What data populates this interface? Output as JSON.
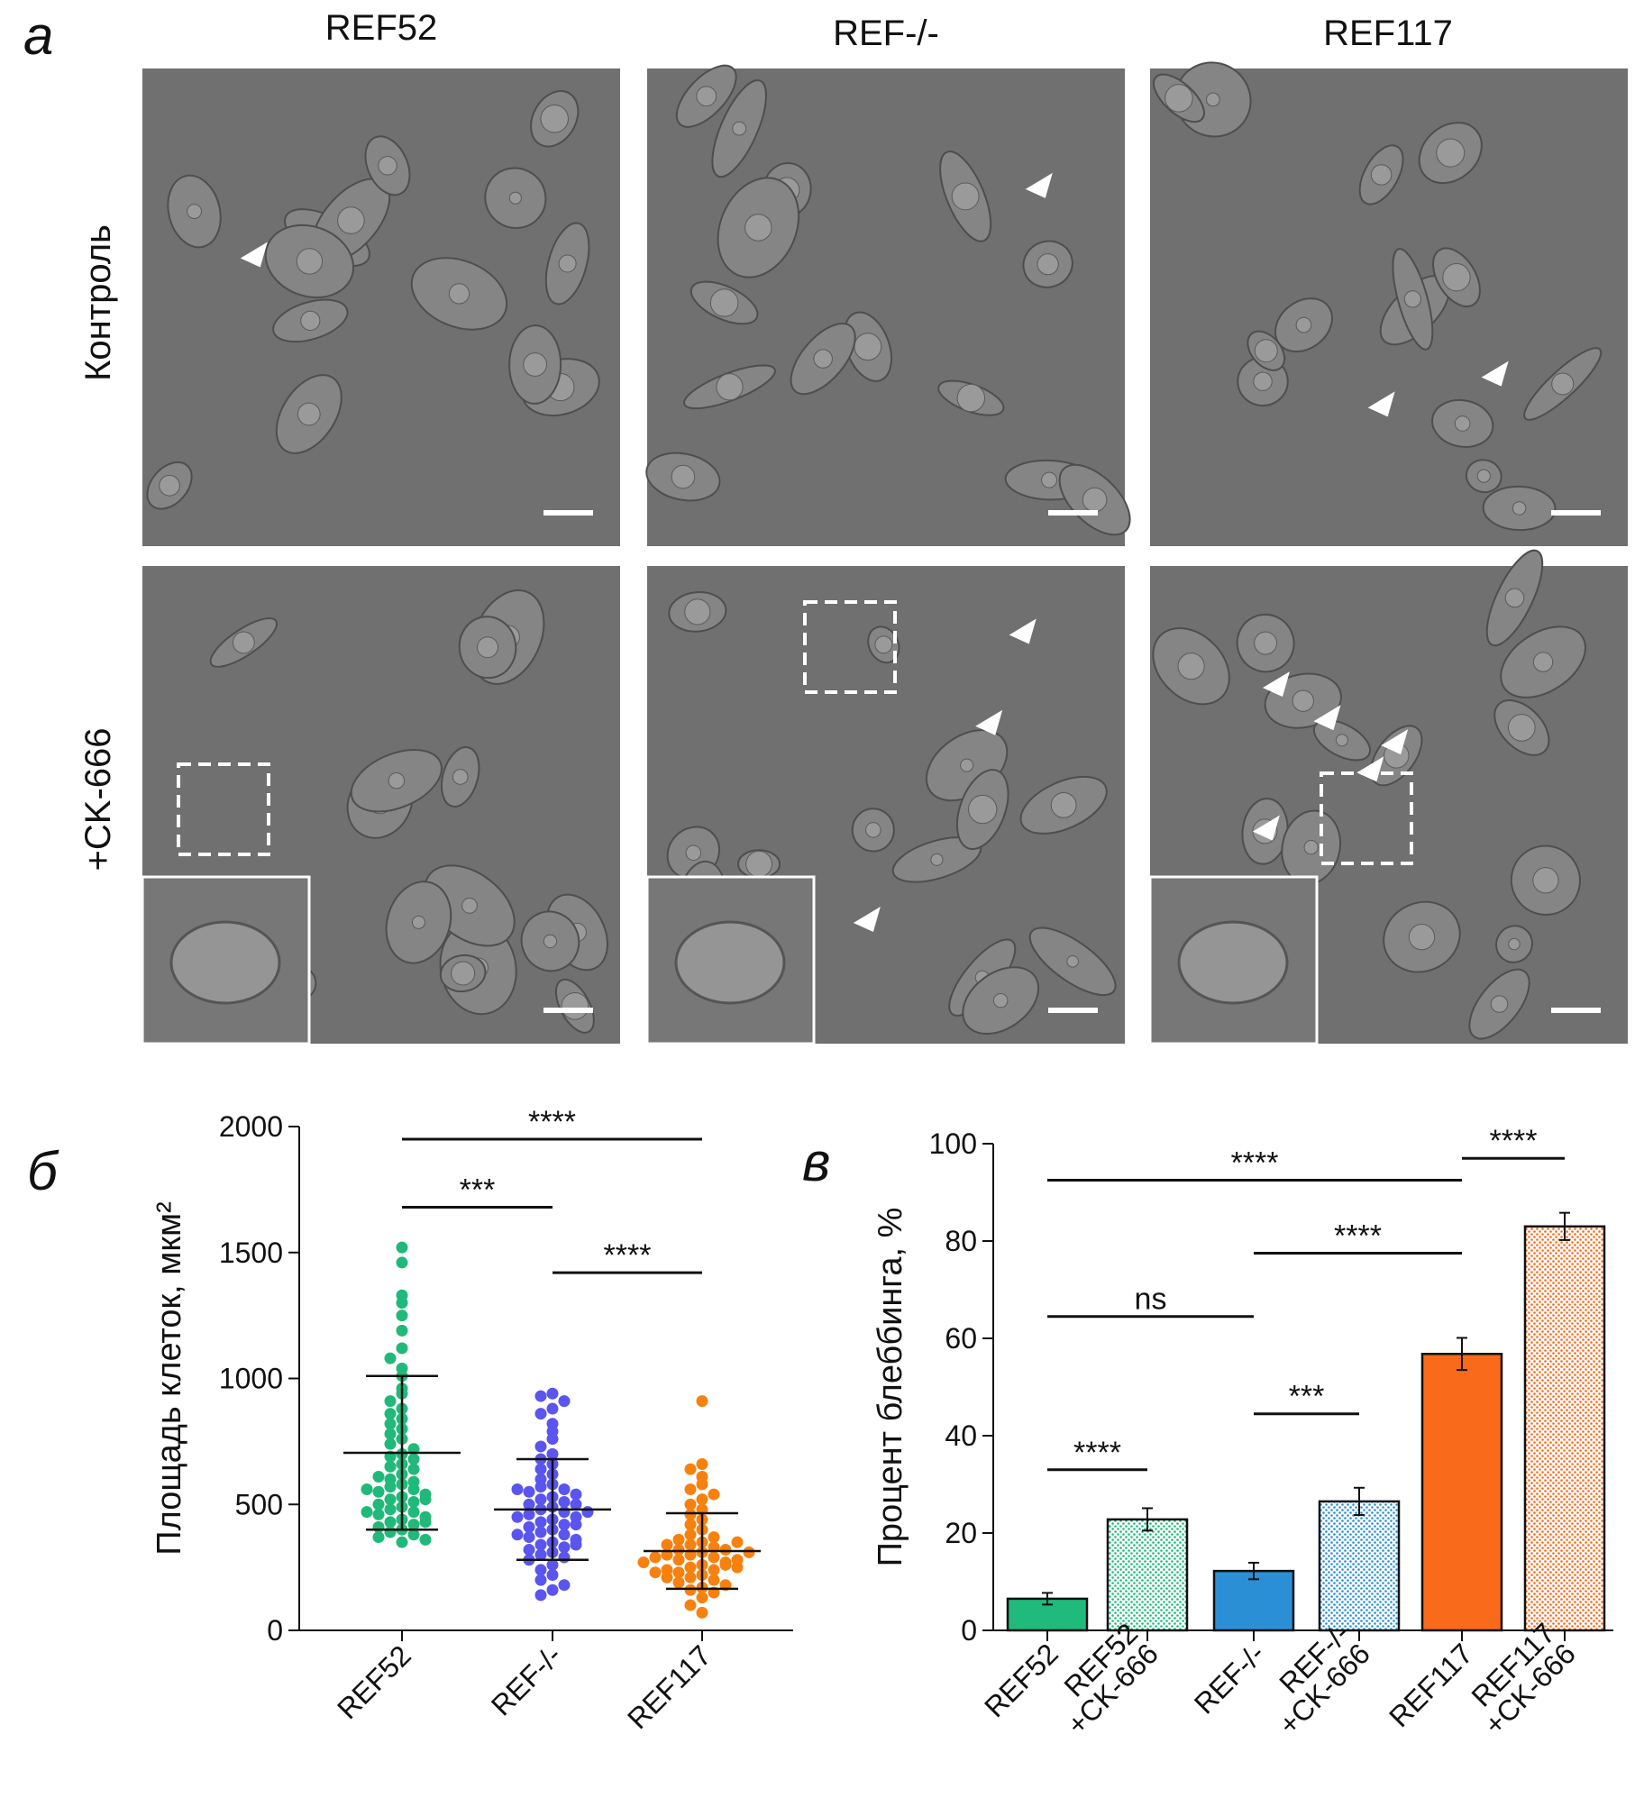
{
  "panel_labels": [
    "а",
    "б",
    "в"
  ],
  "column_titles": [
    "REF52",
    "REF-/-",
    "REF117"
  ],
  "row_labels": [
    "Контроль",
    "+CK-666"
  ],
  "chart_data": [
    {
      "type": "strip",
      "y_label": "Площадь клеток, мкм²",
      "categories": [
        "REF52",
        "REF-/-",
        "REF117"
      ],
      "colors": [
        "#20b97a",
        "#5a55ee",
        "#f7810f"
      ],
      "values": [
        [
          1520,
          1460,
          1330,
          1300,
          1250,
          1190,
          1120,
          1080,
          1040,
          1010,
          960,
          940,
          910,
          880,
          860,
          840,
          820,
          800,
          780,
          760,
          740,
          720,
          700,
          690,
          680,
          660,
          650,
          640,
          620,
          600,
          590,
          580,
          570,
          560,
          550,
          540,
          530,
          520,
          510,
          500,
          490,
          480,
          470,
          460,
          450,
          440,
          430,
          420,
          410,
          400,
          390,
          380,
          370,
          360,
          350,
          470,
          520,
          610,
          560,
          430
        ],
        [
          940,
          930,
          910,
          880,
          860,
          820,
          790,
          760,
          730,
          700,
          680,
          660,
          640,
          620,
          600,
          580,
          570,
          560,
          550,
          540,
          530,
          520,
          510,
          500,
          490,
          480,
          470,
          460,
          450,
          440,
          430,
          420,
          410,
          400,
          390,
          380,
          370,
          360,
          350,
          340,
          330,
          320,
          310,
          300,
          290,
          280,
          260,
          240,
          220,
          200,
          180,
          160,
          140,
          500,
          450,
          420,
          380,
          340,
          560,
          470
        ],
        [
          910,
          660,
          640,
          610,
          580,
          560,
          540,
          520,
          500,
          480,
          460,
          440,
          420,
          400,
          380,
          370,
          360,
          350,
          340,
          330,
          320,
          310,
          300,
          290,
          280,
          270,
          260,
          250,
          240,
          230,
          220,
          210,
          200,
          190,
          180,
          170,
          160,
          150,
          130,
          100,
          70,
          300,
          280,
          260,
          240,
          320,
          340,
          250,
          230,
          210,
          290,
          310,
          350,
          270
        ]
      ],
      "means": [
        705,
        480,
        315
      ],
      "sd": [
        305,
        200,
        150
      ],
      "ylim": [
        0,
        2000
      ],
      "yticks": [
        0,
        500,
        1000,
        1500,
        2000
      ],
      "comparisons": [
        {
          "label": "****",
          "groups": [
            0,
            2
          ],
          "y": 1950
        },
        {
          "label": "***",
          "groups": [
            0,
            1
          ],
          "y": 1680
        },
        {
          "label": "****",
          "groups": [
            1,
            2
          ],
          "y": 1420
        }
      ]
    },
    {
      "type": "bar",
      "y_label": "Процент блеббинга, %",
      "categories": [
        [
          "REF52"
        ],
        [
          "REF52",
          "+CK-666"
        ],
        [
          "REF-/-"
        ],
        [
          "REF-/-",
          "+CK-666"
        ],
        [
          "REF117"
        ],
        [
          "REF117",
          "+CK-666"
        ]
      ],
      "values": [
        6.5,
        22.8,
        12.2,
        26.5,
        56.8,
        83
      ],
      "errors": [
        1.2,
        2.3,
        1.7,
        2.8,
        3.3,
        2.8
      ],
      "colors": [
        "#1fba7c",
        "#1fba7c",
        "#2b8fd6",
        "#2b8fd6",
        "#f96a1b",
        "#f96a1b"
      ],
      "stippled": [
        false,
        true,
        false,
        true,
        false,
        true
      ],
      "ylim": [
        0,
        100
      ],
      "yticks": [
        0,
        20,
        40,
        60,
        80,
        100
      ],
      "comparisons": [
        {
          "label": "****",
          "groups": [
            0,
            4
          ],
          "y": 92.5
        },
        {
          "label": "****",
          "groups": [
            4,
            5
          ],
          "y": 97
        },
        {
          "label": "****",
          "groups": [
            2,
            4
          ],
          "y": 77.5
        },
        {
          "label": "ns",
          "groups": [
            0,
            2
          ],
          "y": 64.5
        },
        {
          "label": "***",
          "groups": [
            2,
            3
          ],
          "y": 44.5
        },
        {
          "label": "****",
          "groups": [
            0,
            1
          ],
          "y": 33
        }
      ]
    }
  ]
}
